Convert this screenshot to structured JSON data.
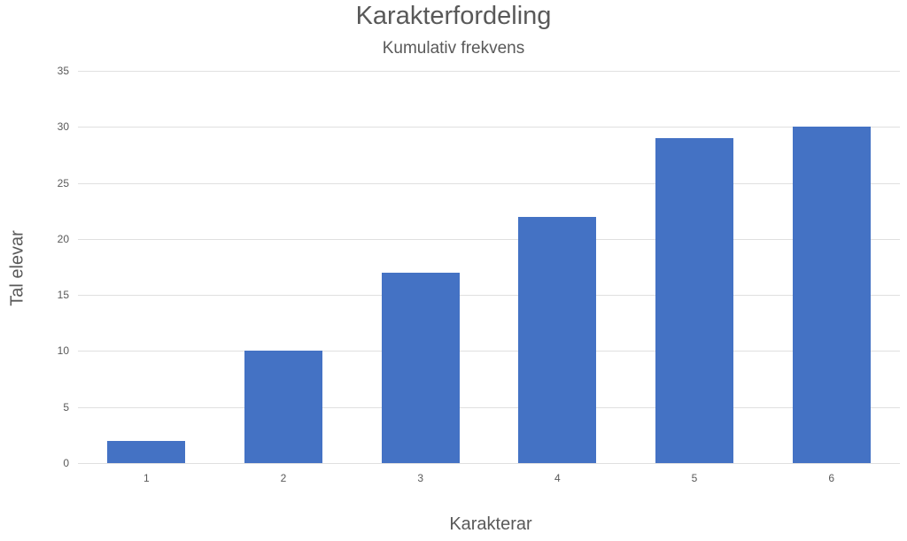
{
  "chart": {
    "title": "Karakterfordeling",
    "subtitle": "Kumulativ frekvens",
    "xlabel": "Karakterar",
    "ylabel": "Tal elevar",
    "yticks": [
      "0",
      "5",
      "10",
      "15",
      "20",
      "25",
      "30",
      "35"
    ],
    "xticks": [
      "1",
      "2",
      "3",
      "4",
      "5",
      "6"
    ],
    "bar_color": "#4472C4"
  },
  "chart_data": {
    "type": "bar",
    "title": "Karakterfordeling",
    "subtitle": "Kumulativ frekvens",
    "categories": [
      "1",
      "2",
      "3",
      "4",
      "5",
      "6"
    ],
    "values": [
      2,
      10,
      17,
      22,
      29,
      30
    ],
    "xlabel": "Karakterar",
    "ylabel": "Tal elevar",
    "ylim": [
      0,
      35
    ],
    "yticks": [
      0,
      5,
      10,
      15,
      20,
      25,
      30,
      35
    ],
    "grid": true,
    "legend": null,
    "colors": [
      "#4472C4"
    ]
  }
}
